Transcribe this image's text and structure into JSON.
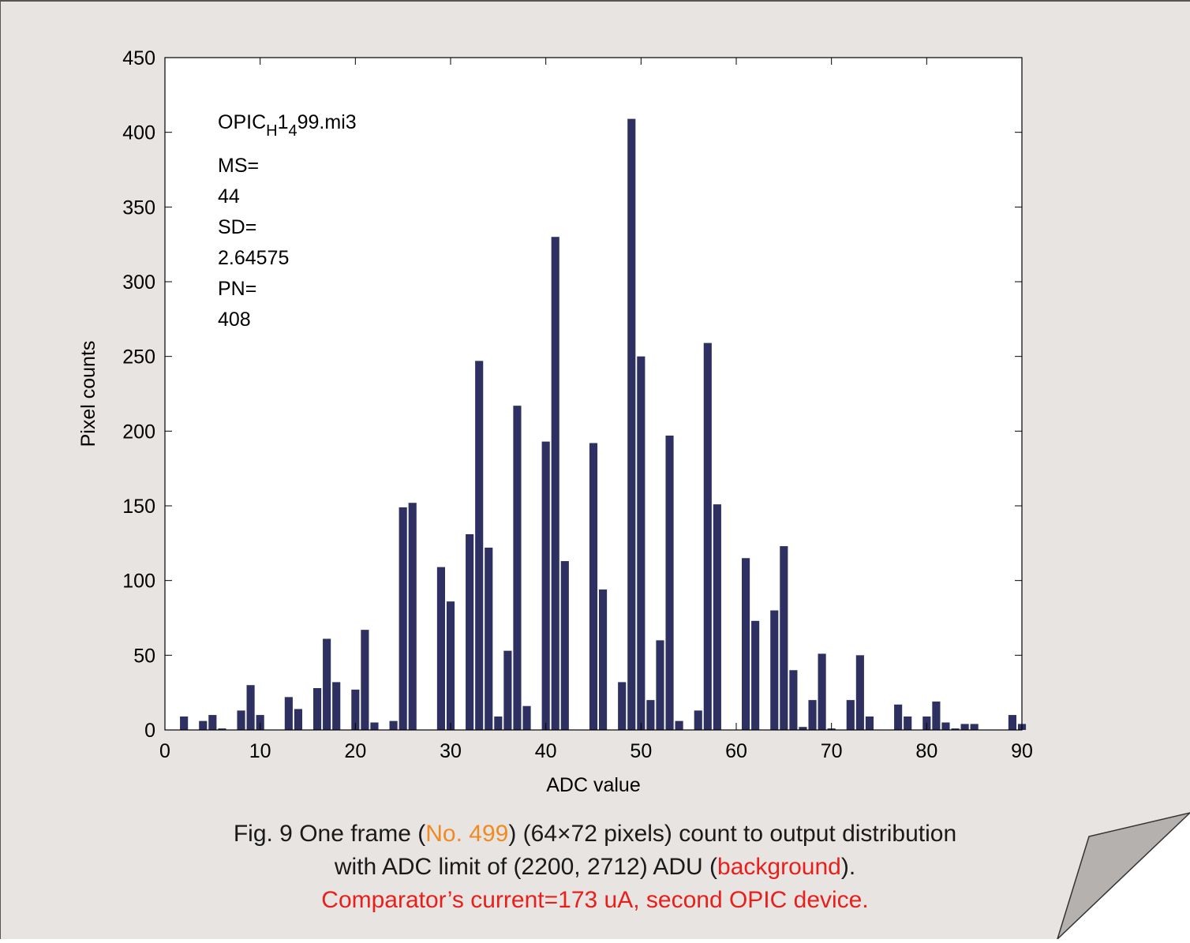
{
  "chart_data": {
    "type": "bar",
    "x": [
      2,
      4,
      5,
      6,
      8,
      9,
      10,
      13,
      14,
      16,
      17,
      18,
      20,
      21,
      22,
      24,
      25,
      26,
      29,
      30,
      32,
      33,
      34,
      35,
      36,
      37,
      38,
      40,
      41,
      42,
      45,
      46,
      48,
      49,
      50,
      51,
      52,
      53,
      54,
      56,
      57,
      58,
      61,
      62,
      64,
      65,
      66,
      67,
      68,
      69,
      70,
      72,
      73,
      74,
      77,
      78,
      80,
      81,
      82,
      83,
      84,
      85,
      89,
      90
    ],
    "values": [
      9,
      6,
      10,
      1,
      13,
      30,
      10,
      22,
      14,
      28,
      61,
      32,
      27,
      67,
      5,
      6,
      149,
      152,
      109,
      86,
      131,
      247,
      122,
      9,
      53,
      217,
      16,
      193,
      330,
      113,
      192,
      94,
      32,
      409,
      250,
      20,
      60,
      197,
      6,
      13,
      259,
      151,
      115,
      73,
      80,
      123,
      40,
      2,
      20,
      51,
      1,
      20,
      50,
      9,
      17,
      9,
      9,
      19,
      5,
      1,
      4,
      4,
      10,
      4
    ],
    "color": "#2e3062",
    "xlim": [
      0,
      90
    ],
    "xticks": [
      0,
      10,
      20,
      30,
      40,
      50,
      60,
      70,
      80,
      90
    ],
    "ylim": [
      0,
      450
    ],
    "yticks": [
      0,
      50,
      100,
      150,
      200,
      250,
      300,
      350,
      400,
      450
    ],
    "xlabel": "ADC value",
    "ylabel": "Pixel counts",
    "annotation": {
      "file": [
        {
          "text": "OPIC",
          "sub": false
        },
        {
          "text": "H",
          "sub": true
        },
        {
          "text": "1",
          "sub": false
        },
        {
          "text": "4",
          "sub": true
        },
        {
          "text": "99.mi3",
          "sub": false
        }
      ],
      "lines": [
        "MS=",
        "44",
        "SD=",
        "2.64575",
        "PN=",
        "408"
      ]
    },
    "caption": [
      [
        {
          "text": "Fig. 9   One frame (",
          "color": "#1a1a1a"
        },
        {
          "text": "No. 499",
          "color": "#f08a24"
        },
        {
          "text": ") (64×72 pixels) count to output distribution",
          "color": "#1a1a1a"
        }
      ],
      [
        {
          "text": "with ADC limit of (2200, 2712) ADU (",
          "color": "#1a1a1a"
        },
        {
          "text": "background",
          "color": "#e8201c"
        },
        {
          "text": ").",
          "color": "#1a1a1a"
        }
      ],
      [
        {
          "text": "Comparator’s current=173 uA, second OPIC device.",
          "color": "#e8201c"
        }
      ]
    ]
  }
}
